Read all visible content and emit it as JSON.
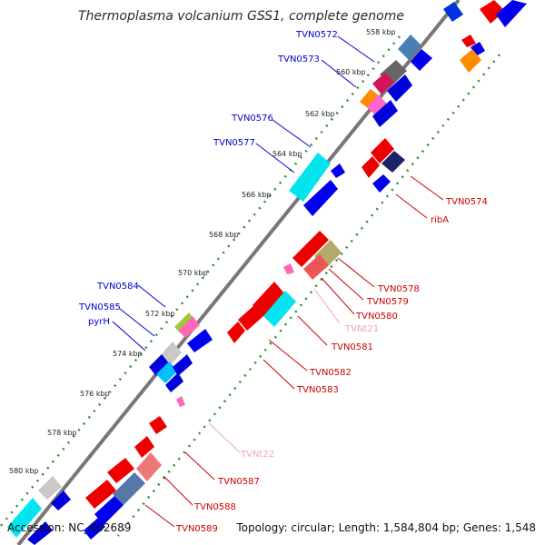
{
  "title": "Thermoplasma volcanium GSS1, complete genome",
  "footer": {
    "accession": "Accession: NC_002689",
    "summary": "Topology: circular; Length: 1,584,804 bp; Genes: 1,548"
  },
  "colors": {
    "backbone": "#777777",
    "tick_dots": "#2e8b2e",
    "label_blue": "#0000cc",
    "label_red": "#cc0000",
    "label_pink": "#f0a0c0"
  },
  "kbp_ticks": [
    "558 kbp",
    "560 kbp",
    "562 kbp",
    "564 kbp",
    "566 kbp",
    "568 kbp",
    "570 kbp",
    "572 kbp",
    "574 kbp",
    "576 kbp",
    "578 kbp",
    "580 kbp"
  ],
  "gene_labels": {
    "left": [
      "TVN0572",
      "TVN0573",
      "TVN0576",
      "TVN0577",
      "TVN0584",
      "TVN0585",
      "pyrH"
    ],
    "right": [
      "TVN0574",
      "ribA",
      "TVN0578",
      "TVN0579",
      "TVN0580",
      "TVNt21",
      "TVN0581",
      "TVN0582",
      "TVN0583",
      "TVNt22",
      "TVN0587",
      "TVN0588",
      "TVN0589"
    ]
  }
}
